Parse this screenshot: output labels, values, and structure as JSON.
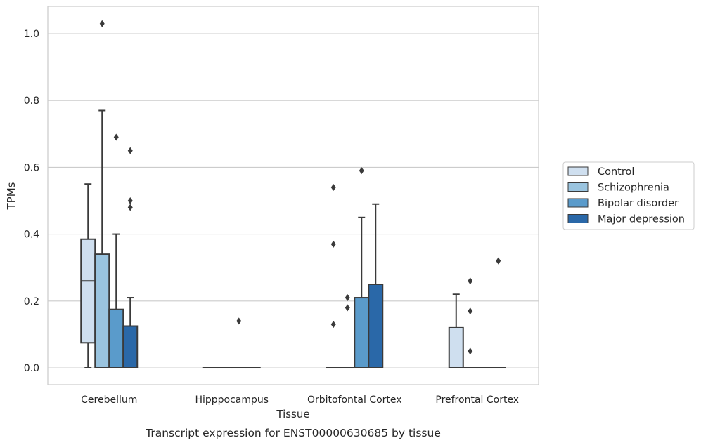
{
  "chart_data": {
    "type": "boxplot",
    "xlabel": "Tissue",
    "ylabel": "TPMs",
    "caption": "Transcript expression for ENST00000630685 by tissue",
    "ylim": [
      -0.05,
      1.08
    ],
    "yticks": [
      "0.0",
      "0.2",
      "0.4",
      "0.6",
      "0.8",
      "1.0"
    ],
    "grid": "horizontal",
    "legend_position": "right",
    "categories": [
      "Cerebellum",
      "Hipppocampus",
      "Orbitofontal Cortex",
      "Prefrontal Cortex"
    ],
    "series": [
      {
        "name": "Control",
        "color": "#cfdfef",
        "boxes": [
          {
            "q1": 0.075,
            "median": 0.26,
            "q3": 0.385,
            "whisker_low": 0.0,
            "whisker_high": 0.55,
            "outliers": []
          },
          {
            "q1": 0.0,
            "median": 0.0,
            "q3": 0.0,
            "whisker_low": 0.0,
            "whisker_high": 0.0,
            "outliers": []
          },
          {
            "q1": 0.0,
            "median": 0.0,
            "q3": 0.0,
            "whisker_low": 0.0,
            "whisker_high": 0.0,
            "outliers": [
              0.54,
              0.37,
              0.13
            ]
          },
          {
            "q1": 0.0,
            "median": 0.0,
            "q3": 0.12,
            "whisker_low": 0.0,
            "whisker_high": 0.22,
            "outliers": []
          }
        ]
      },
      {
        "name": "Schizophrenia",
        "color": "#9ac4df",
        "boxes": [
          {
            "q1": 0.0,
            "median": 0.0,
            "q3": 0.34,
            "whisker_low": 0.0,
            "whisker_high": 0.77,
            "outliers": [
              1.03
            ]
          },
          {
            "q1": 0.0,
            "median": 0.0,
            "q3": 0.0,
            "whisker_low": 0.0,
            "whisker_high": 0.0,
            "outliers": []
          },
          {
            "q1": 0.0,
            "median": 0.0,
            "q3": 0.0,
            "whisker_low": 0.0,
            "whisker_high": 0.0,
            "outliers": [
              0.21,
              0.18
            ]
          },
          {
            "q1": 0.0,
            "median": 0.0,
            "q3": 0.0,
            "whisker_low": 0.0,
            "whisker_high": 0.0,
            "outliers": [
              0.26,
              0.17,
              0.05
            ]
          }
        ]
      },
      {
        "name": "Bipolar disorder",
        "color": "#5a9bcb",
        "boxes": [
          {
            "q1": 0.0,
            "median": 0.0,
            "q3": 0.175,
            "whisker_low": 0.0,
            "whisker_high": 0.4,
            "outliers": [
              0.69
            ]
          },
          {
            "q1": 0.0,
            "median": 0.0,
            "q3": 0.0,
            "whisker_low": 0.0,
            "whisker_high": 0.0,
            "outliers": [
              0.14
            ]
          },
          {
            "q1": 0.0,
            "median": 0.0,
            "q3": 0.21,
            "whisker_low": 0.0,
            "whisker_high": 0.45,
            "outliers": [
              0.59
            ]
          },
          {
            "q1": 0.0,
            "median": 0.0,
            "q3": 0.0,
            "whisker_low": 0.0,
            "whisker_high": 0.0,
            "outliers": []
          }
        ]
      },
      {
        "name": "Major depression",
        "color": "#2a68a8",
        "boxes": [
          {
            "q1": 0.0,
            "median": 0.0,
            "q3": 0.125,
            "whisker_low": 0.0,
            "whisker_high": 0.21,
            "outliers": [
              0.65,
              0.5,
              0.48
            ]
          },
          {
            "q1": 0.0,
            "median": 0.0,
            "q3": 0.0,
            "whisker_low": 0.0,
            "whisker_high": 0.0,
            "outliers": []
          },
          {
            "q1": 0.0,
            "median": 0.0,
            "q3": 0.25,
            "whisker_low": 0.0,
            "whisker_high": 0.49,
            "outliers": []
          },
          {
            "q1": 0.0,
            "median": 0.0,
            "q3": 0.0,
            "whisker_low": 0.0,
            "whisker_high": 0.0,
            "outliers": [
              0.32
            ]
          }
        ]
      }
    ]
  }
}
